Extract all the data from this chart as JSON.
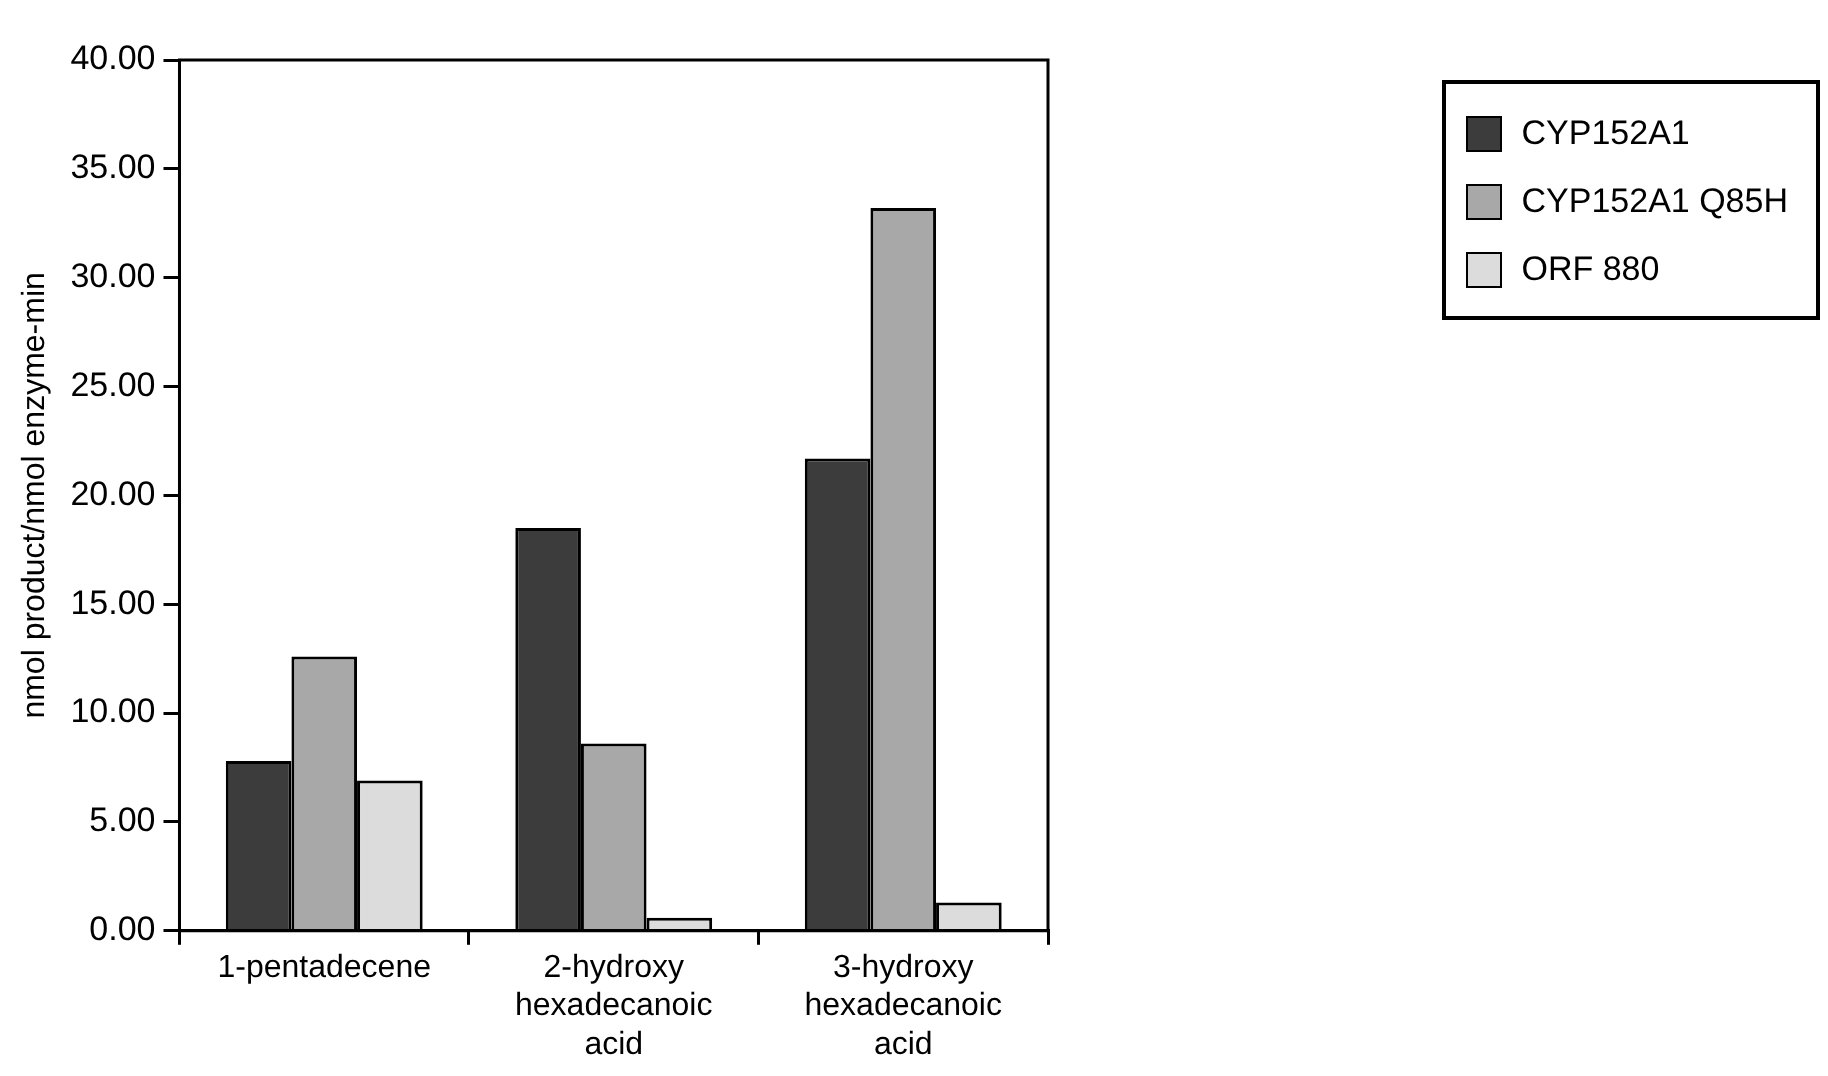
{
  "chart_data": {
    "type": "bar",
    "ylabel": "nmol product/nmol enzyme-min",
    "categories": [
      "1-pentadecene",
      "2-hydroxy hexadecanoic acid",
      "3-hydroxy hexadecanoic acid"
    ],
    "series": [
      {
        "name": "CYP152A1",
        "color": "#3c3c3c",
        "values": [
          7.8,
          18.5,
          21.7
        ]
      },
      {
        "name": "CYP152A1 Q85H",
        "color": "#a8a8a8",
        "values": [
          12.6,
          8.6,
          33.2
        ]
      },
      {
        "name": "ORF 880",
        "color": "#dcdcdc",
        "values": [
          6.9,
          0.6,
          1.3
        ]
      }
    ],
    "ylim": [
      0,
      40
    ],
    "yticks": [
      {
        "value": 0,
        "label": "0.00"
      },
      {
        "value": 5,
        "label": "5.00"
      },
      {
        "value": 10,
        "label": "10.00"
      },
      {
        "value": 15,
        "label": "15.00"
      },
      {
        "value": 20,
        "label": "20.00"
      },
      {
        "value": 25,
        "label": "25.00"
      },
      {
        "value": 30,
        "label": "30.00"
      },
      {
        "value": 35,
        "label": "35.00"
      },
      {
        "value": 40,
        "label": "40.00"
      }
    ],
    "grid": false,
    "legend": "top right"
  }
}
